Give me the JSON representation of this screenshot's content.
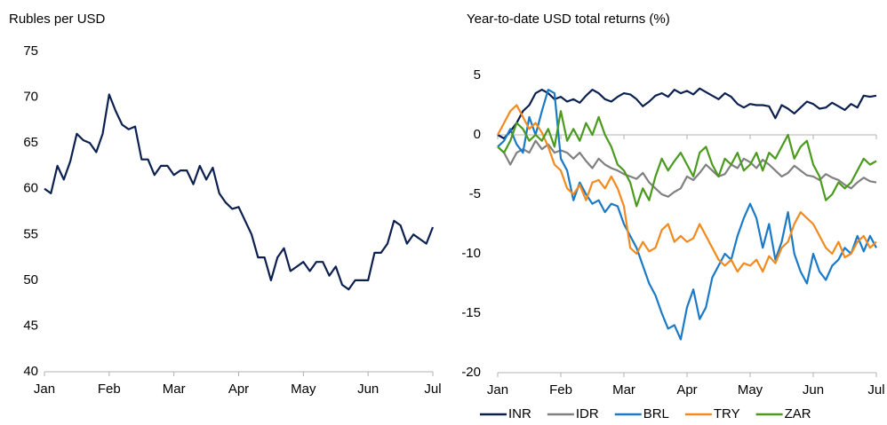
{
  "chart_data": [
    {
      "type": "line",
      "title": "Rubles per USD",
      "x": [
        0,
        0.1,
        0.2,
        0.3,
        0.4,
        0.5,
        0.6,
        0.7,
        0.8,
        0.9,
        1,
        1.1,
        1.2,
        1.3,
        1.4,
        1.5,
        1.6,
        1.7,
        1.8,
        1.9,
        2,
        2.1,
        2.2,
        2.3,
        2.4,
        2.5,
        2.6,
        2.7,
        2.8,
        2.9,
        3,
        3.1,
        3.2,
        3.3,
        3.4,
        3.5,
        3.6,
        3.7,
        3.8,
        3.9,
        4,
        4.1,
        4.2,
        4.3,
        4.4,
        4.5,
        4.6,
        4.7,
        4.8,
        4.9,
        5,
        5.1,
        5.2,
        5.3,
        5.4,
        5.5,
        5.6,
        5.7,
        5.8,
        5.9,
        6
      ],
      "series": [
        {
          "color": "#0c2050",
          "values": [
            60,
            59.5,
            62.5,
            61,
            63,
            66,
            65.3,
            65,
            64,
            66,
            70.3,
            68.5,
            67,
            66.5,
            66.8,
            63.2,
            63.2,
            61.5,
            62.5,
            62.5,
            61.5,
            62,
            62,
            60.5,
            62.5,
            61,
            62.3,
            59.5,
            58.5,
            57.8,
            58,
            56.5,
            55,
            52.5,
            52.5,
            50,
            52.5,
            53.5,
            51,
            51.5,
            52,
            51,
            52,
            52,
            50.5,
            51.5,
            49.5,
            49,
            50,
            50,
            50,
            53,
            53,
            54,
            56.5,
            56,
            54,
            55,
            54.5,
            54,
            55.8
          ]
        }
      ],
      "xlim": [
        0,
        6
      ],
      "xticks": [
        {
          "value": 0,
          "label": "Jan"
        },
        {
          "value": 1,
          "label": "Feb"
        },
        {
          "value": 2,
          "label": "Mar"
        },
        {
          "value": 3,
          "label": "Apr"
        },
        {
          "value": 4,
          "label": "May"
        },
        {
          "value": 5,
          "label": "Jun"
        },
        {
          "value": 6,
          "label": "Jul"
        }
      ],
      "ylim": [
        40,
        75
      ],
      "yticks": [
        40,
        45,
        50,
        55,
        60,
        65,
        70,
        75
      ]
    },
    {
      "type": "line",
      "title": "Year-to-date USD total returns (%)",
      "x": [
        0,
        0.1,
        0.2,
        0.3,
        0.4,
        0.5,
        0.6,
        0.7,
        0.8,
        0.9,
        1,
        1.1,
        1.2,
        1.3,
        1.4,
        1.5,
        1.6,
        1.7,
        1.8,
        1.9,
        2,
        2.1,
        2.2,
        2.3,
        2.4,
        2.5,
        2.6,
        2.7,
        2.8,
        2.9,
        3,
        3.1,
        3.2,
        3.3,
        3.4,
        3.5,
        3.6,
        3.7,
        3.8,
        3.9,
        4,
        4.1,
        4.2,
        4.3,
        4.4,
        4.5,
        4.6,
        4.7,
        4.8,
        4.9,
        5,
        5.1,
        5.2,
        5.3,
        5.4,
        5.5,
        5.6,
        5.7,
        5.8,
        5.9,
        6
      ],
      "series": [
        {
          "name": "INR",
          "color": "#0c2050",
          "values": [
            0,
            -0.3,
            0.3,
            1,
            2,
            2.5,
            3.5,
            3.8,
            3.5,
            3,
            3.2,
            2.8,
            3,
            2.7,
            3.3,
            3.8,
            3.5,
            3,
            2.8,
            3.2,
            3.5,
            3.4,
            3,
            2.4,
            2.8,
            3.3,
            3.5,
            3.2,
            3.8,
            3.5,
            3.7,
            3.4,
            3.9,
            3.6,
            3.3,
            3,
            3.5,
            3.2,
            2.6,
            2.3,
            2.6,
            2.5,
            2.5,
            2.4,
            1.4,
            2.5,
            2.2,
            1.8,
            2.3,
            2.8,
            2.6,
            2.2,
            2.3,
            2.7,
            2.4,
            2.1,
            2.6,
            2.3,
            3.3,
            3.2,
            3.3
          ]
        },
        {
          "name": "IDR",
          "color": "#808080",
          "values": [
            -1,
            -1.5,
            -2.5,
            -1.5,
            -1.2,
            -1.5,
            -0.5,
            -1.2,
            -0.8,
            -1.5,
            -1.3,
            -1.5,
            -2,
            -1.5,
            -2.2,
            -2.8,
            -2,
            -2.5,
            -2.8,
            -3,
            -3.3,
            -3.5,
            -3.7,
            -3.2,
            -4,
            -4.5,
            -5,
            -5.2,
            -4.8,
            -4.5,
            -3.5,
            -3.8,
            -3.2,
            -2.5,
            -3,
            -3.5,
            -3.3,
            -2.5,
            -2.8,
            -2,
            -2.3,
            -2.8,
            -2.1,
            -2.5,
            -3,
            -3.5,
            -3.2,
            -2.6,
            -3,
            -3.4,
            -3.5,
            -3.8,
            -3.3,
            -3.6,
            -3.8,
            -4.2,
            -4.5,
            -4,
            -3.6,
            -3.9,
            -4
          ]
        },
        {
          "name": "BRL",
          "color": "#1a7ac8",
          "values": [
            -1,
            -0.5,
            0.5,
            -0.8,
            -1.5,
            1.5,
            0,
            2,
            3.8,
            3.5,
            -2,
            -3,
            -5.5,
            -4,
            -5,
            -5.8,
            -5.5,
            -6.5,
            -5.8,
            -6,
            -7.5,
            -8.5,
            -9.5,
            -11,
            -12.5,
            -13.5,
            -15,
            -16.3,
            -16,
            -17.2,
            -14.5,
            -13,
            -15.5,
            -14.5,
            -12,
            -11,
            -10,
            -10.5,
            -8.5,
            -7,
            -5.8,
            -7,
            -9.5,
            -7.5,
            -10.5,
            -9,
            -6.5,
            -10,
            -11.5,
            -12.5,
            -10,
            -11.5,
            -12.2,
            -11,
            -10.5,
            -9.5,
            -10,
            -8.5,
            -9.8,
            -8.5,
            -9.5
          ]
        },
        {
          "name": "TRY",
          "color": "#f28a1e",
          "values": [
            0,
            1,
            2,
            2.5,
            1.5,
            0.5,
            1,
            0.2,
            -1,
            -2.5,
            -3,
            -4.5,
            -5,
            -4.2,
            -5.5,
            -4,
            -3.8,
            -4.5,
            -3.5,
            -4.5,
            -6,
            -9.5,
            -10,
            -9,
            -9.8,
            -9.5,
            -8,
            -7.5,
            -9,
            -8.5,
            -9,
            -8.7,
            -7.5,
            -8.5,
            -9.5,
            -10.5,
            -11,
            -10.5,
            -11.5,
            -10.8,
            -11,
            -10.5,
            -11.5,
            -10.2,
            -10.8,
            -9.5,
            -9,
            -7.5,
            -6.5,
            -7,
            -7.5,
            -8.5,
            -9.5,
            -10,
            -9,
            -10.3,
            -10,
            -9,
            -8.5,
            -9.5,
            -9
          ]
        },
        {
          "name": "ZAR",
          "color": "#4a9a1e",
          "values": [
            -1,
            -1.5,
            -0.5,
            1,
            0.5,
            -0.5,
            0,
            -0.5,
            0.5,
            -1,
            2,
            -0.5,
            0.5,
            -0.5,
            1,
            0,
            1.5,
            0,
            -1,
            -2.5,
            -3,
            -4,
            -6,
            -4.5,
            -5.5,
            -3.5,
            -2,
            -3,
            -2.2,
            -1.5,
            -2.5,
            -3.5,
            -1.5,
            -1,
            -2.5,
            -3.5,
            -2,
            -2.5,
            -1.5,
            -3,
            -2.5,
            -1.5,
            -3,
            -1.5,
            -2,
            -1,
            0,
            -2,
            -1,
            -0.5,
            -2.5,
            -3.5,
            -5.5,
            -5,
            -4,
            -4.5,
            -4,
            -3,
            -2,
            -2.5,
            -2.2
          ]
        }
      ],
      "xlim": [
        0,
        6
      ],
      "xticks": [
        {
          "value": 0,
          "label": "Jan"
        },
        {
          "value": 1,
          "label": "Feb"
        },
        {
          "value": 2,
          "label": "Mar"
        },
        {
          "value": 3,
          "label": "Apr"
        },
        {
          "value": 4,
          "label": "May"
        },
        {
          "value": 5,
          "label": "Jun"
        },
        {
          "value": 6,
          "label": "Jul"
        }
      ],
      "ylim": [
        -20,
        5
      ],
      "yticks": [
        -20,
        -15,
        -10,
        -5,
        0,
        5
      ]
    }
  ]
}
